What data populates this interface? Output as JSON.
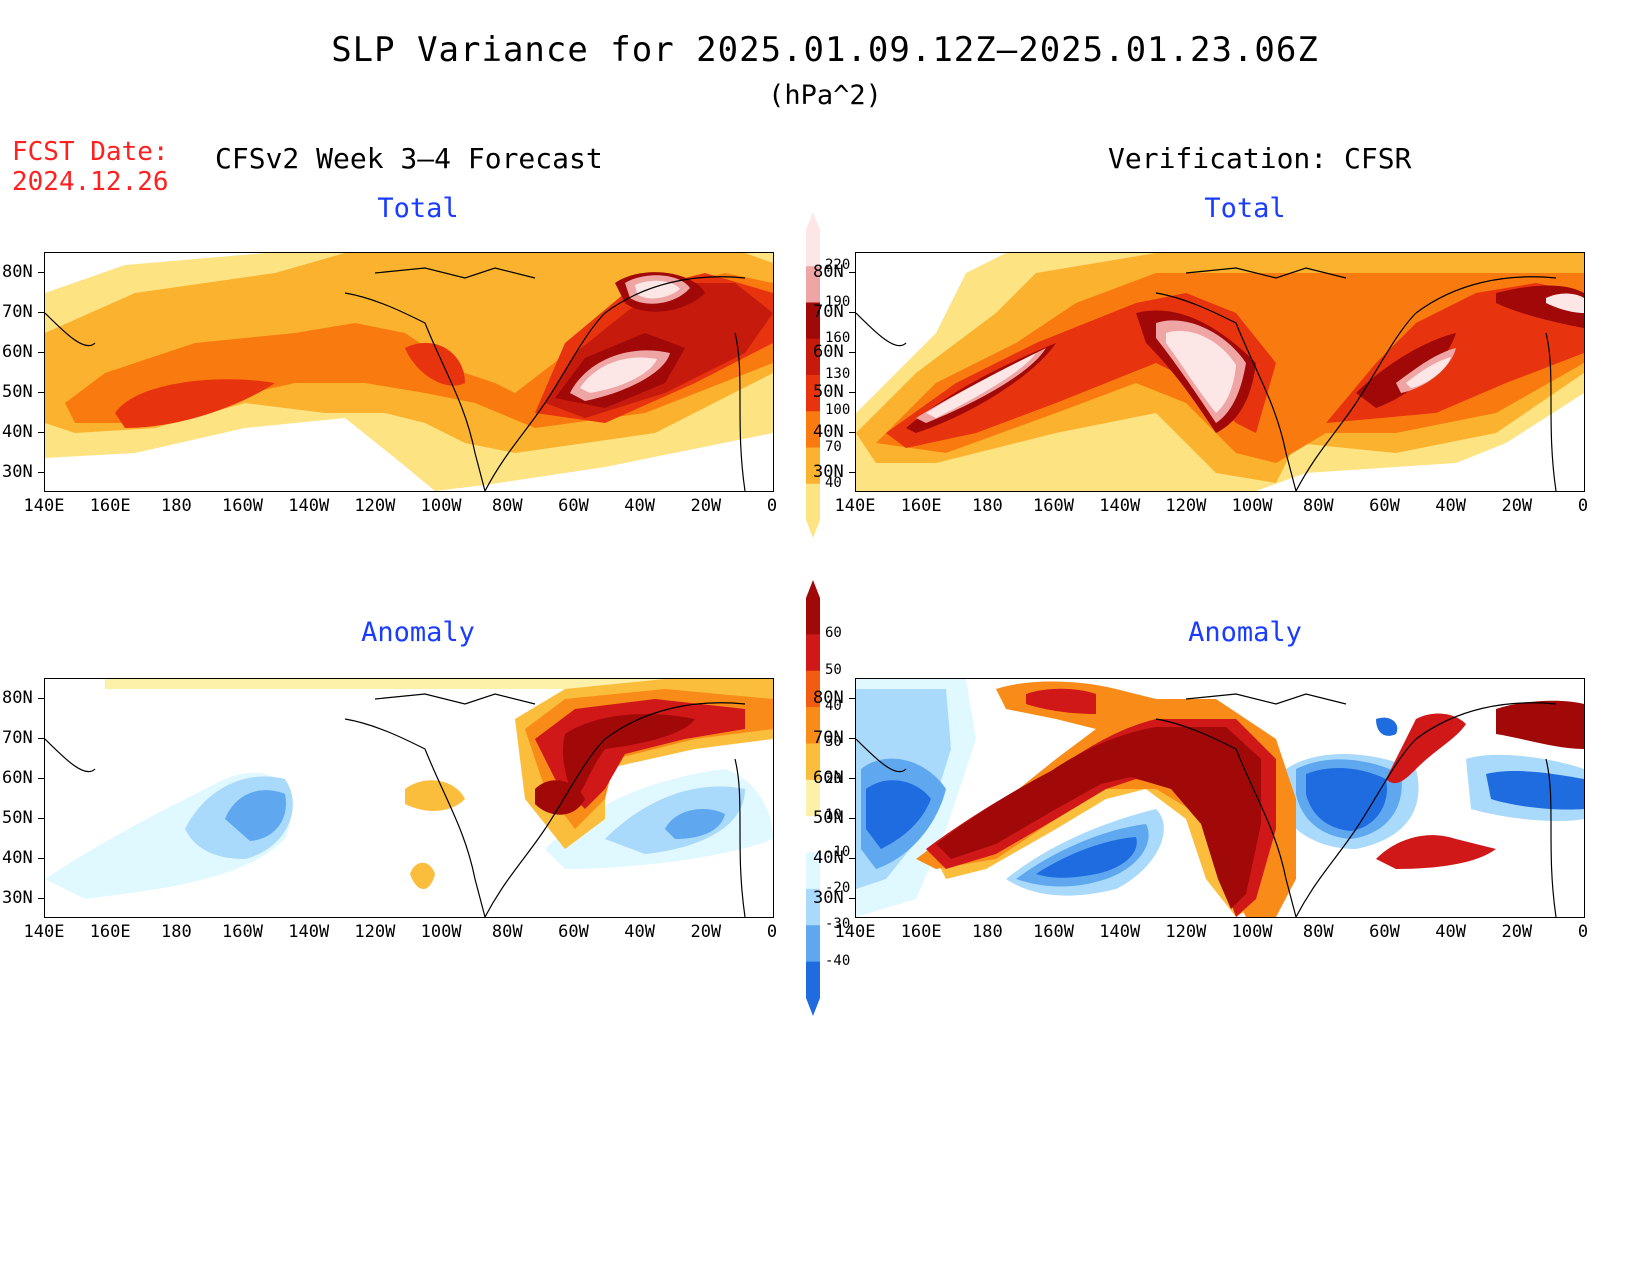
{
  "title": "SLP Variance for 2025.01.09.12Z–2025.01.23.06Z",
  "units": "(hPa^2)",
  "forecast_date": {
    "label": "FCST Date:",
    "value": "2024.12.26"
  },
  "left_header": "CFSv2 Week 3–4 Forecast",
  "right_header": "Verification: CFSR",
  "panels": {
    "fcst_total": {
      "title": "Total"
    },
    "verif_total": {
      "title": "Total"
    },
    "fcst_anomaly": {
      "title": "Anomaly"
    },
    "verif_anomaly": {
      "title": "Anomaly"
    }
  },
  "axes": {
    "lon_labels": [
      "140E",
      "160E",
      "180",
      "160W",
      "140W",
      "120W",
      "100W",
      "80W",
      "60W",
      "40W",
      "20W",
      "0"
    ],
    "lat_labels": [
      "80N",
      "70N",
      "60N",
      "50N",
      "40N",
      "30N"
    ]
  },
  "total_colorbar": {
    "levels": [
      "40",
      "70",
      "100",
      "130",
      "160",
      "190",
      "220"
    ],
    "colors": [
      "#fde382",
      "#fbb22e",
      "#f97b0f",
      "#e8340e",
      "#c51a0c",
      "#a10808",
      "#f0a5a5",
      "#fde6e6"
    ]
  },
  "anomaly_colorbar": {
    "levels": [
      "60",
      "50",
      "40",
      "30",
      "20",
      "10",
      "-10",
      "-20",
      "-30",
      "-40"
    ],
    "colors": [
      "#a10808",
      "#d01818",
      "#f25c12",
      "#f98c18",
      "#fbbd3c",
      "#fdf0a8",
      "#ffffff",
      "#e0f8ff",
      "#a9d9fb",
      "#5fa8f0",
      "#1f6ce0"
    ]
  },
  "colors": {
    "title_blue": "#1a3cff",
    "fcst_red": "#ff2020",
    "land_outline": "#000000"
  }
}
